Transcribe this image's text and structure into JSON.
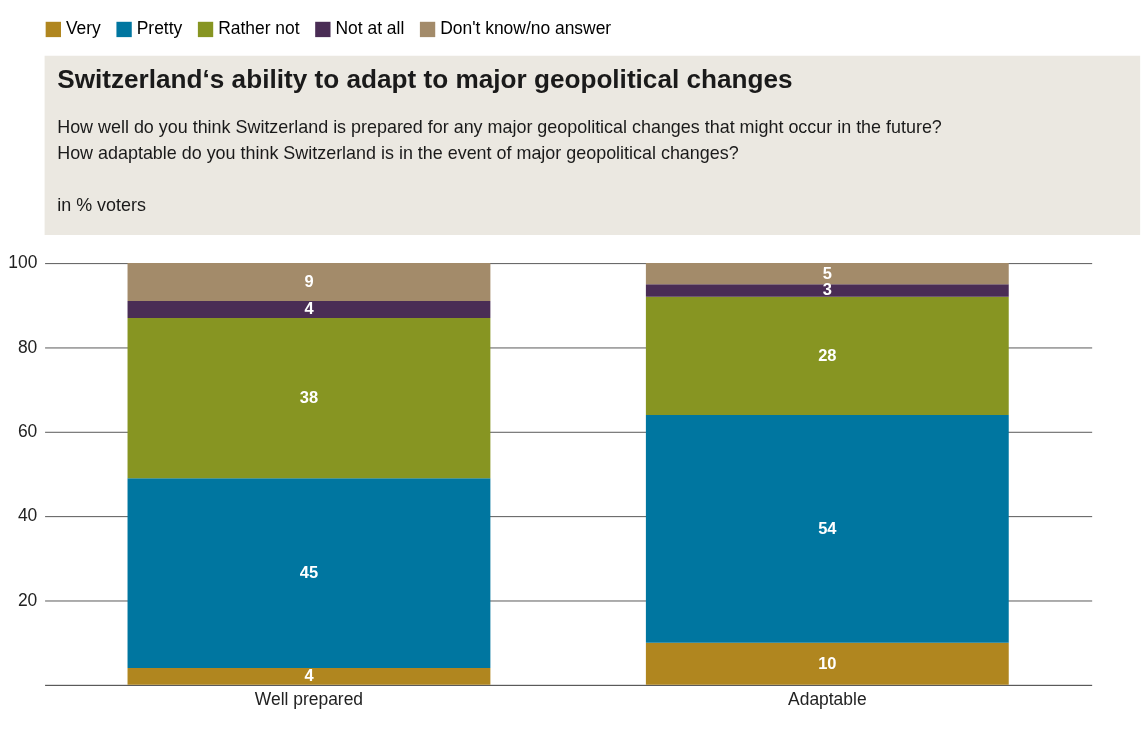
{
  "chart_data": {
    "type": "bar",
    "title": "Switzerland‘s ability to adapt to major geopolitical changes",
    "subtitle": [
      "How well do you think Switzerland is prepared for any major geopolitical changes that might occur in the future?",
      "How adaptable do you think Switzerland is in the event of major geopolitical changes?"
    ],
    "ylabel": "in % voters",
    "categories": [
      "Well prepared",
      "Adaptable"
    ],
    "series": [
      {
        "name": "Very",
        "color": "#b0861f",
        "values": [
          4,
          10
        ]
      },
      {
        "name": "Pretty",
        "color": "#0076a0",
        "values": [
          45,
          54
        ]
      },
      {
        "name": "Rather not",
        "color": "#879522",
        "values": [
          38,
          28
        ]
      },
      {
        "name": "Not at all",
        "color": "#4a2d55",
        "values": [
          4,
          3
        ]
      },
      {
        "name": "Don't know/no answer",
        "color": "#a38b6a",
        "values": [
          9,
          5
        ]
      }
    ],
    "stacked": true,
    "data_labels": true,
    "ylim": [
      0,
      100
    ],
    "yticks": [
      20,
      40,
      60,
      80,
      100
    ],
    "grid": "y",
    "legend": "top left"
  }
}
